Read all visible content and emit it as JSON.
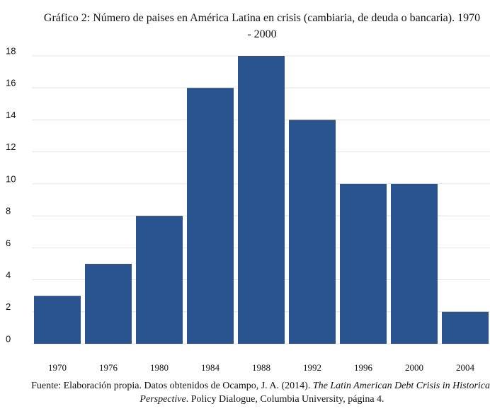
{
  "chart_data": {
    "type": "bar",
    "title": "Gráfico 2: Número de paises en América Latina en crisis (cambiaria, de deuda o bancaria). 1970 - 2000",
    "categories": [
      "1970",
      "1976",
      "1980",
      "1984",
      "1988",
      "1992",
      "1996",
      "2000",
      "2004"
    ],
    "values": [
      3,
      5,
      8,
      16,
      18,
      14,
      10,
      10,
      2
    ],
    "color": "#2a5490",
    "ylim": [
      0,
      18
    ],
    "yticks": [
      0,
      2,
      4,
      6,
      8,
      10,
      12,
      14,
      16,
      18
    ],
    "grid": true,
    "source": [
      "Fuente: Elaboración propia. Datos obtenidos de Ocampo, J. A. (2014). ",
      "The Latin American Debt Crisis in Historical Perspective",
      ". Policy Dialogue, Columbia University, página 4."
    ]
  }
}
